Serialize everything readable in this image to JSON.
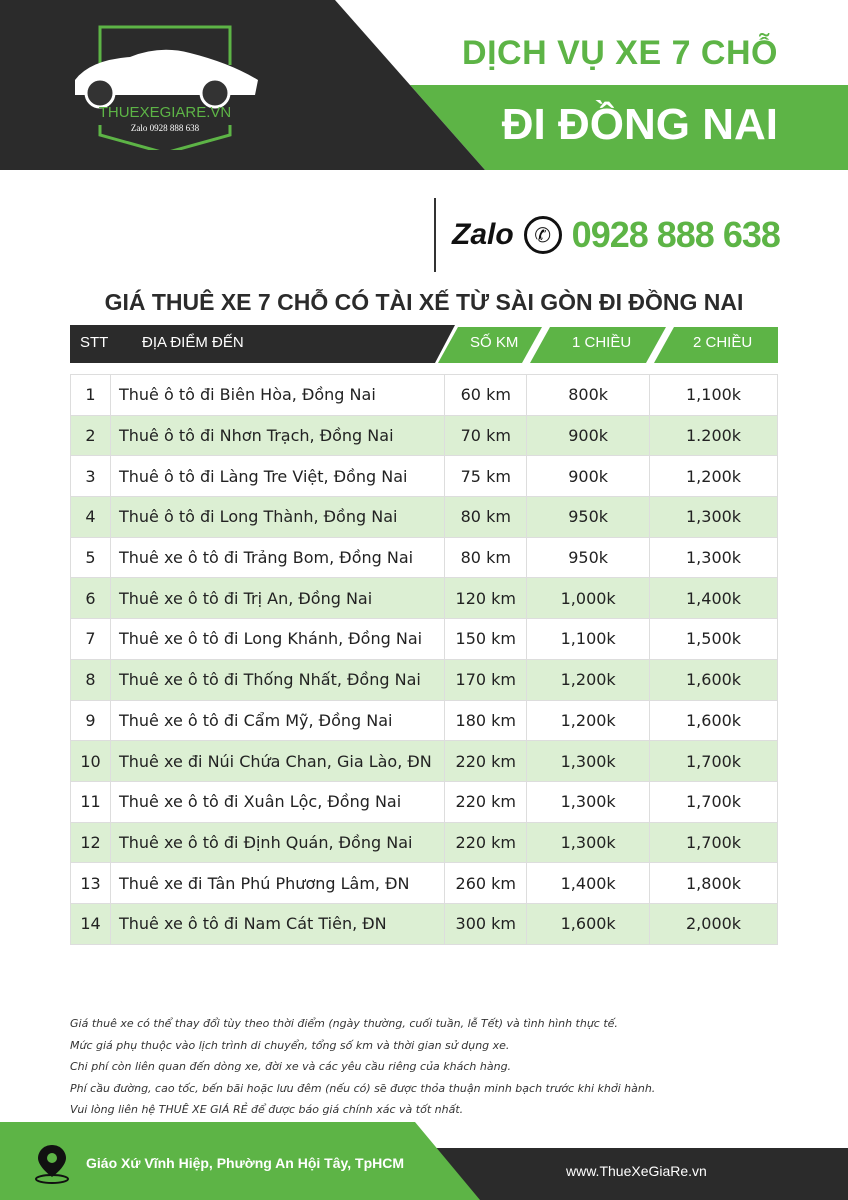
{
  "header": {
    "line1": "DỊCH VỤ XE 7 CHỖ",
    "line2": "ĐI ĐỒNG NAI",
    "logo_text": "THUEXEGIARE.VN",
    "logo_phone": "Zalo 0928 888 638"
  },
  "contact": {
    "zalo": "Zalo",
    "phone": "0928 888 638"
  },
  "title": "GIÁ THUÊ XE 7 CHỖ CÓ TÀI XẾ TỪ SÀI GÒN ĐI ĐỒNG NAI",
  "columns": [
    "STT",
    "ĐỊA ĐIỂM ĐẾN",
    "SỐ KM",
    "1 CHIỀU",
    "2 CHIỀU"
  ],
  "rows": [
    [
      "1",
      "Thuê ô tô đi Biên Hòa, Đồng Nai",
      "60 km",
      "800k",
      "1,100k"
    ],
    [
      "2",
      "Thuê ô tô đi Nhơn Trạch, Đồng Nai",
      "70 km",
      "900k",
      "1.200k"
    ],
    [
      "3",
      "Thuê ô tô đi Làng Tre Việt, Đồng Nai",
      "75 km",
      "900k",
      "1,200k"
    ],
    [
      "4",
      "Thuê ô tô đi Long Thành, Đồng Nai",
      "80 km",
      "950k",
      "1,300k"
    ],
    [
      "5",
      "Thuê xe ô tô đi Trảng Bom, Đồng Nai",
      "80 km",
      "950k",
      "1,300k"
    ],
    [
      "6",
      "Thuê xe ô tô đi Trị An, Đồng Nai",
      "120 km",
      "1,000k",
      "1,400k"
    ],
    [
      "7",
      "Thuê xe ô tô đi Long Khánh, Đồng Nai",
      "150 km",
      "1,100k",
      "1,500k"
    ],
    [
      "8",
      "Thuê xe ô tô đi Thống Nhất, Đồng Nai",
      "170 km",
      "1,200k",
      "1,600k"
    ],
    [
      "9",
      "Thuê xe ô tô đi Cẩm Mỹ, Đồng Nai",
      "180 km",
      "1,200k",
      "1,600k"
    ],
    [
      "10",
      "Thuê xe đi Núi Chứa Chan, Gia Lào, ĐN",
      "220 km",
      "1,300k",
      "1,700k"
    ],
    [
      "11",
      "Thuê xe ô tô đi Xuân Lộc, Đồng Nai",
      "220 km",
      "1,300k",
      "1,700k"
    ],
    [
      "12",
      "Thuê xe ô tô đi Định Quán, Đồng Nai",
      "220 km",
      "1,300k",
      "1,700k"
    ],
    [
      "13",
      "Thuê xe đi Tân Phú Phương Lâm, ĐN",
      "260 km",
      "1,400k",
      "1,800k"
    ],
    [
      "14",
      "Thuê xe ô tô đi Nam Cát Tiên, ĐN",
      "300 km",
      "1,600k",
      "2,000k"
    ]
  ],
  "notes": [
    "Giá thuê xe có thể thay đổi tùy theo thời điểm (ngày thường, cuối tuần, lễ Tết) và tình hình thực tế.",
    "Mức giá phụ thuộc vào lịch trình di chuyển, tổng số km và thời gian sử dụng xe.",
    "Chi phí còn liên quan đến dòng xe, đời xe và các yêu cầu riêng của khách hàng.",
    "Phí cầu đường, cao tốc, bến bãi hoặc lưu đêm (nếu có) sẽ được thỏa thuận minh bạch trước khi khởi hành.",
    "Vui lòng liên hệ THUÊ XE GIÁ RẺ để được báo giá chính xác và tốt nhất."
  ],
  "footer": {
    "address": "Giáo Xứ Vĩnh Hiệp, Phường An Hội Tây, TpHCM",
    "website": "www.ThueXeGiaRe.vn"
  },
  "colors": {
    "green": "#5db446",
    "dark": "#2b2b2b",
    "row_alt": "#dcefd3"
  }
}
